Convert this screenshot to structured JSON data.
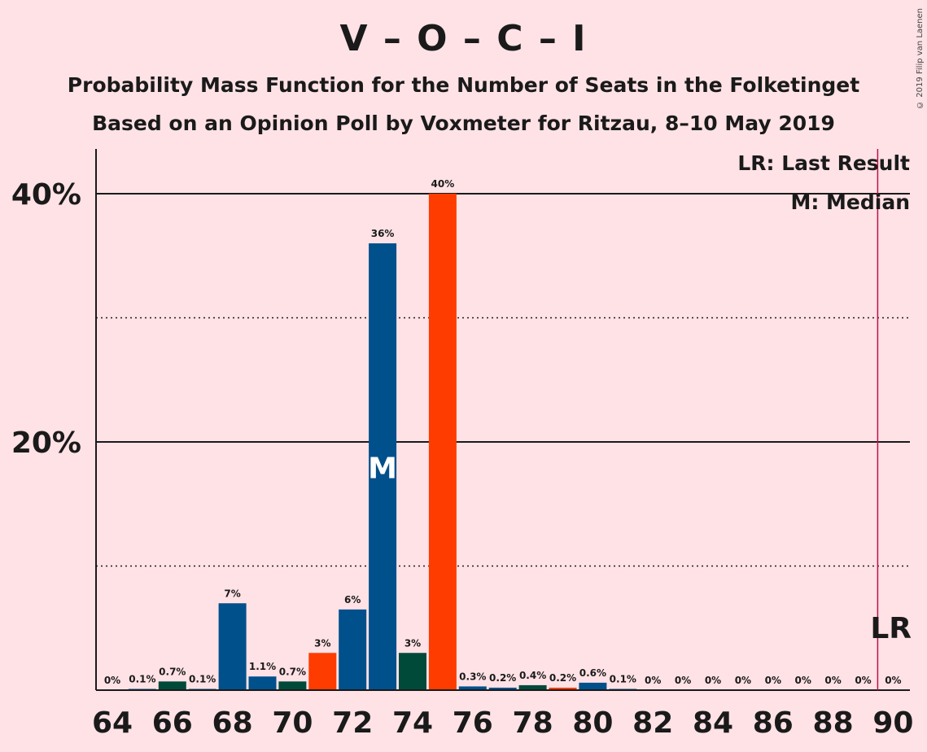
{
  "title": "V – O – C – I",
  "subtitle1": "Probability Mass Function for the Number of Seats in the Folketinget",
  "subtitle2": "Based on an Opinion Poll by Voxmeter for Ritzau, 8–10 May 2019",
  "copyright": "© 2019 Filip van Laenen",
  "legend": {
    "lr": "LR: Last Result",
    "median": "M: Median"
  },
  "markers": {
    "median_label": "M",
    "lr_label": "LR",
    "median_seat": 73,
    "last_result_seat": 90
  },
  "colors": {
    "background": "#ffe2e6",
    "blue": "#00508c",
    "dark_green": "#004a3a",
    "orange_red": "#ff3c00",
    "lr_line": "#c0104a"
  },
  "chart_data": {
    "type": "bar",
    "xlabel": "",
    "ylabel": "",
    "ylim": [
      0,
      44
    ],
    "yticks_labeled": [
      "20%",
      "40%"
    ],
    "yticks_values": [
      20,
      40
    ],
    "minor_gridlines": [
      10,
      30
    ],
    "xtick_labels": [
      "64",
      "66",
      "68",
      "70",
      "72",
      "74",
      "76",
      "78",
      "80",
      "82",
      "84",
      "86",
      "88",
      "90"
    ],
    "bars": [
      {
        "seat": 64,
        "value": 0,
        "label": "0%",
        "color": "blue"
      },
      {
        "seat": 65,
        "value": 0.1,
        "label": "0.1%",
        "color": "blue"
      },
      {
        "seat": 66,
        "value": 0.7,
        "label": "0.7%",
        "color": "dark_green"
      },
      {
        "seat": 67,
        "value": 0.1,
        "label": "0.1%",
        "color": "blue"
      },
      {
        "seat": 68,
        "value": 7,
        "label": "7%",
        "color": "blue"
      },
      {
        "seat": 69,
        "value": 1.1,
        "label": "1.1%",
        "color": "blue"
      },
      {
        "seat": 70,
        "value": 0.7,
        "label": "0.7%",
        "color": "dark_green"
      },
      {
        "seat": 71,
        "value": 3,
        "label": "3%",
        "color": "orange_red"
      },
      {
        "seat": 72,
        "value": 6.5,
        "label": "6%",
        "color": "blue"
      },
      {
        "seat": 73,
        "value": 36,
        "label": "36%",
        "color": "blue"
      },
      {
        "seat": 74,
        "value": 3,
        "label": "3%",
        "color": "dark_green"
      },
      {
        "seat": 75,
        "value": 40,
        "label": "40%",
        "color": "orange_red"
      },
      {
        "seat": 76,
        "value": 0.3,
        "label": "0.3%",
        "color": "blue"
      },
      {
        "seat": 77,
        "value": 0.2,
        "label": "0.2%",
        "color": "blue"
      },
      {
        "seat": 78,
        "value": 0.4,
        "label": "0.4%",
        "color": "dark_green"
      },
      {
        "seat": 79,
        "value": 0.2,
        "label": "0.2%",
        "color": "orange_red"
      },
      {
        "seat": 80,
        "value": 0.6,
        "label": "0.6%",
        "color": "blue"
      },
      {
        "seat": 81,
        "value": 0.1,
        "label": "0.1%",
        "color": "blue"
      },
      {
        "seat": 82,
        "value": 0,
        "label": "0%",
        "color": "blue"
      },
      {
        "seat": 83,
        "value": 0,
        "label": "0%",
        "color": "blue"
      },
      {
        "seat": 84,
        "value": 0,
        "label": "0%",
        "color": "blue"
      },
      {
        "seat": 85,
        "value": 0,
        "label": "0%",
        "color": "blue"
      },
      {
        "seat": 86,
        "value": 0,
        "label": "0%",
        "color": "blue"
      },
      {
        "seat": 87,
        "value": 0,
        "label": "0%",
        "color": "blue"
      },
      {
        "seat": 88,
        "value": 0,
        "label": "0%",
        "color": "blue"
      },
      {
        "seat": 89,
        "value": 0,
        "label": "0%",
        "color": "blue"
      },
      {
        "seat": 90,
        "value": 0,
        "label": "0%",
        "color": "blue"
      }
    ]
  }
}
